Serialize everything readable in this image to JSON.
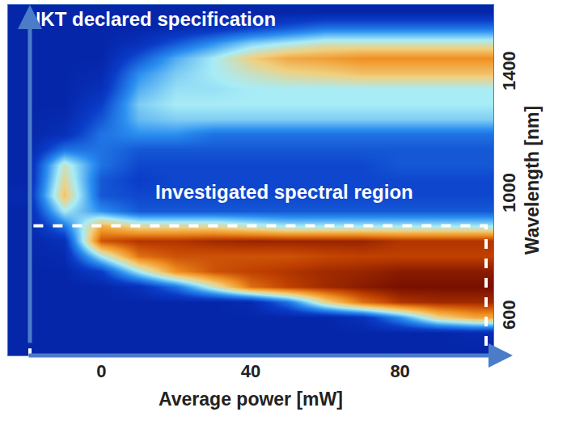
{
  "chart_data": {
    "type": "heatmap",
    "annotations": [
      "NKT declared specification",
      "Investigated spectral region"
    ],
    "x_label": "Average power [mW]",
    "y_label": "Wavelength [nm]",
    "x": [
      -20,
      -10,
      0,
      10,
      20,
      30,
      40,
      50,
      60,
      70,
      80,
      90,
      100
    ],
    "y": [
      500,
      550,
      600,
      650,
      700,
      750,
      800,
      850,
      900,
      950,
      1000,
      1050,
      1100,
      1150,
      1200,
      1250,
      1300,
      1350,
      1400,
      1450,
      1500,
      1550,
      1600
    ],
    "z": [
      [
        0.1,
        0.1,
        0.1,
        0.1,
        0.1,
        0.1,
        0.1,
        0.1,
        0.1,
        0.1,
        0.1,
        0.1,
        0.1
      ],
      [
        0.1,
        0.1,
        0.1,
        0.1,
        0.1,
        0.1,
        0.1,
        0.1,
        0.1,
        0.1,
        0.1,
        0.1,
        0.12
      ],
      [
        0.1,
        0.1,
        0.1,
        0.1,
        0.1,
        0.1,
        0.1,
        0.1,
        0.1,
        0.15,
        0.35,
        0.6,
        0.7
      ],
      [
        0.1,
        0.1,
        0.1,
        0.1,
        0.1,
        0.1,
        0.12,
        0.3,
        0.6,
        0.8,
        0.9,
        0.92,
        0.92
      ],
      [
        0.1,
        0.1,
        0.1,
        0.15,
        0.3,
        0.55,
        0.8,
        0.88,
        0.92,
        0.95,
        0.97,
        0.97,
        0.97
      ],
      [
        0.1,
        0.1,
        0.2,
        0.5,
        0.75,
        0.85,
        0.88,
        0.9,
        0.92,
        0.93,
        0.95,
        0.95,
        0.95
      ],
      [
        0.1,
        0.12,
        0.5,
        0.8,
        0.85,
        0.85,
        0.85,
        0.85,
        0.87,
        0.88,
        0.88,
        0.88,
        0.88
      ],
      [
        0.1,
        0.15,
        0.85,
        0.9,
        0.9,
        0.92,
        0.93,
        0.93,
        0.93,
        0.93,
        0.9,
        0.9,
        0.9
      ],
      [
        0.1,
        0.3,
        0.7,
        0.6,
        0.6,
        0.6,
        0.55,
        0.5,
        0.5,
        0.5,
        0.5,
        0.5,
        0.5
      ],
      [
        0.1,
        0.5,
        0.35,
        0.25,
        0.25,
        0.25,
        0.25,
        0.25,
        0.25,
        0.25,
        0.25,
        0.25,
        0.25
      ],
      [
        0.12,
        0.65,
        0.25,
        0.22,
        0.22,
        0.22,
        0.22,
        0.22,
        0.22,
        0.22,
        0.22,
        0.22,
        0.22
      ],
      [
        0.1,
        0.6,
        0.25,
        0.2,
        0.22,
        0.22,
        0.22,
        0.22,
        0.22,
        0.22,
        0.22,
        0.22,
        0.22
      ],
      [
        0.1,
        0.55,
        0.3,
        0.22,
        0.22,
        0.22,
        0.22,
        0.22,
        0.22,
        0.22,
        0.25,
        0.25,
        0.25
      ],
      [
        0.1,
        0.3,
        0.3,
        0.25,
        0.25,
        0.25,
        0.25,
        0.25,
        0.25,
        0.25,
        0.25,
        0.25,
        0.25
      ],
      [
        0.1,
        0.15,
        0.3,
        0.35,
        0.35,
        0.3,
        0.3,
        0.3,
        0.3,
        0.3,
        0.3,
        0.3,
        0.3
      ],
      [
        0.1,
        0.12,
        0.25,
        0.42,
        0.45,
        0.45,
        0.45,
        0.45,
        0.45,
        0.45,
        0.45,
        0.45,
        0.45
      ],
      [
        0.1,
        0.1,
        0.2,
        0.45,
        0.5,
        0.5,
        0.5,
        0.5,
        0.5,
        0.5,
        0.5,
        0.5,
        0.5
      ],
      [
        0.1,
        0.1,
        0.15,
        0.4,
        0.48,
        0.48,
        0.5,
        0.5,
        0.5,
        0.5,
        0.5,
        0.5,
        0.5
      ],
      [
        0.1,
        0.1,
        0.12,
        0.35,
        0.45,
        0.5,
        0.55,
        0.6,
        0.62,
        0.65,
        0.65,
        0.65,
        0.65
      ],
      [
        0.1,
        0.1,
        0.1,
        0.25,
        0.4,
        0.5,
        0.62,
        0.7,
        0.72,
        0.75,
        0.75,
        0.75,
        0.75
      ],
      [
        0.1,
        0.1,
        0.1,
        0.15,
        0.25,
        0.35,
        0.45,
        0.5,
        0.55,
        0.55,
        0.55,
        0.55,
        0.55
      ],
      [
        0.1,
        0.1,
        0.1,
        0.1,
        0.12,
        0.15,
        0.2,
        0.25,
        0.3,
        0.3,
        0.3,
        0.3,
        0.3
      ],
      [
        0.1,
        0.1,
        0.1,
        0.1,
        0.1,
        0.1,
        0.1,
        0.1,
        0.1,
        0.1,
        0.1,
        0.1,
        0.1
      ]
    ],
    "zlim": [
      0,
      1
    ],
    "xlim": [
      -25,
      105
    ],
    "ylim": [
      475,
      1625
    ],
    "xticks": [
      0,
      40,
      80
    ],
    "yticks": [
      600,
      1000,
      1400
    ],
    "investigated_region_max": 900,
    "grid": false
  }
}
